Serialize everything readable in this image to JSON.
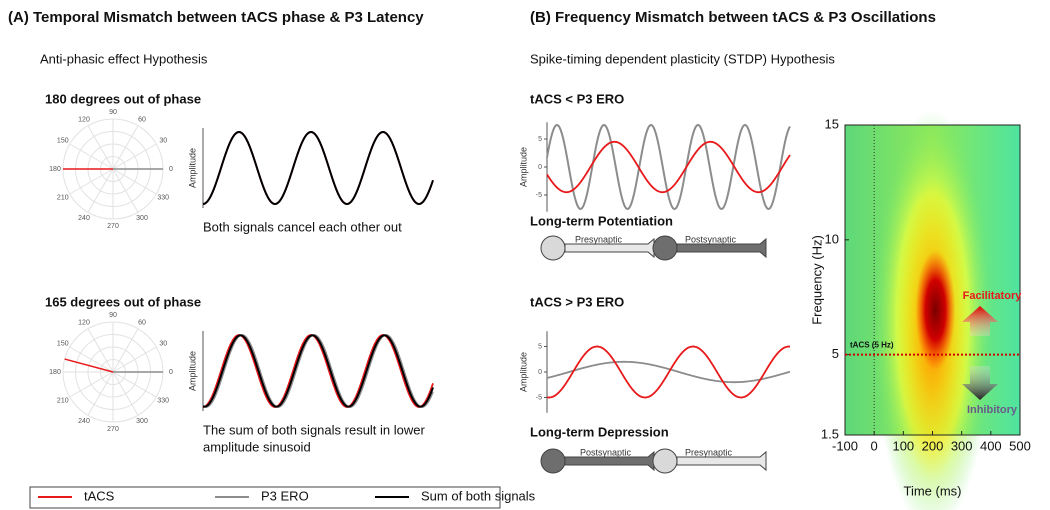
{
  "panel_a": {
    "title": "(A) Temporal Mismatch between tACS phase & P3 Latency",
    "hypothesis": "Anti-phasic effect Hypothesis",
    "y_label": "Amplitude",
    "polar_ticks": [
      90,
      60,
      30,
      0,
      330,
      300,
      270,
      240,
      210,
      180,
      150,
      120
    ],
    "plots": [
      {
        "heading": "180 degrees out of phase",
        "caption": [
          "Both signals cancel each other out"
        ]
      },
      {
        "heading": "165 degrees out of phase",
        "caption": [
          "The sum of both signals result in lower",
          "amplitude sinusoid"
        ]
      }
    ]
  },
  "legend": [
    "tACS",
    "P3 ERO",
    "Sum of both signals"
  ],
  "panel_b": {
    "title": "(B) Frequency Mismatch between tACS & P3 Oscillations",
    "hypothesis": "Spike-timing dependent plasticity (STDP) Hypothesis",
    "y_label": "Amplitude",
    "yticks": [
      5,
      0,
      -5
    ],
    "plots": [
      {
        "heading": "tACS < P3 ERO",
        "caption": "Long-term Potentiation",
        "neurons": [
          "Presynaptic",
          "Postsynaptic"
        ]
      },
      {
        "heading": "tACS > P3 ERO",
        "caption": "Long-term Depression",
        "neurons": [
          "Postsynaptic",
          "Presynaptic"
        ]
      }
    ],
    "heatmap": {
      "y_label": "Frequency (Hz)",
      "x_label": "Time (ms)",
      "ylim": [
        1.5,
        15
      ],
      "yticks": [
        15,
        10,
        5,
        1.5
      ],
      "xlim": [
        -100,
        500
      ],
      "xticks": [
        -100,
        0,
        100,
        200,
        300,
        400,
        500
      ],
      "tacs_label": "tACS (5 Hz)",
      "facilitatory": "Facilitatory",
      "inhibitory": "Inhibitory"
    }
  }
}
